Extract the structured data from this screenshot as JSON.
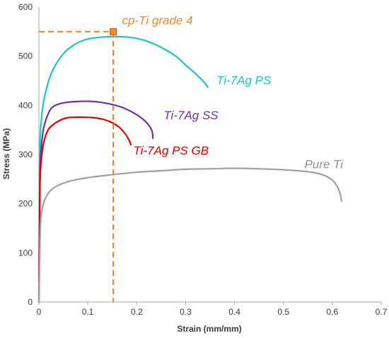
{
  "chart_data": {
    "type": "line",
    "xlabel": "Strain (mm/mm)",
    "ylabel": "Stress (MPa)",
    "xlim": [
      0,
      0.7
    ],
    "ylim": [
      0,
      600
    ],
    "xticks": [
      "0",
      "0.1",
      "0.2",
      "0.3",
      "0.4",
      "0.5",
      "0.6",
      "0.7"
    ],
    "yticks": [
      "0",
      "100",
      "200",
      "300",
      "400",
      "500",
      "600"
    ],
    "grid": false,
    "legend": "none (series labeled directly on plot)",
    "series": [
      {
        "name": "Ti-7Ag PS",
        "color": "#1fc6c0",
        "points": [
          [
            0,
            0
          ],
          [
            0.002,
            300
          ],
          [
            0.005,
            370
          ],
          [
            0.01,
            410
          ],
          [
            0.02,
            450
          ],
          [
            0.03,
            475
          ],
          [
            0.05,
            505
          ],
          [
            0.075,
            525
          ],
          [
            0.1,
            535
          ],
          [
            0.13,
            539
          ],
          [
            0.16,
            540
          ],
          [
            0.19,
            538
          ],
          [
            0.22,
            531
          ],
          [
            0.25,
            518
          ],
          [
            0.28,
            500
          ],
          [
            0.3,
            482
          ],
          [
            0.32,
            465
          ],
          [
            0.335,
            450
          ],
          [
            0.342,
            442
          ],
          [
            0.345,
            437
          ]
        ]
      },
      {
        "name": "Ti-7Ag SS",
        "color": "#7030a0",
        "points": [
          [
            0,
            0
          ],
          [
            0.002,
            250
          ],
          [
            0.005,
            315
          ],
          [
            0.01,
            355
          ],
          [
            0.02,
            385
          ],
          [
            0.03,
            398
          ],
          [
            0.05,
            405
          ],
          [
            0.08,
            408
          ],
          [
            0.11,
            408
          ],
          [
            0.14,
            404
          ],
          [
            0.17,
            396
          ],
          [
            0.195,
            384
          ],
          [
            0.215,
            370
          ],
          [
            0.228,
            355
          ],
          [
            0.232,
            345
          ],
          [
            0.233,
            333
          ]
        ]
      },
      {
        "name": "Ti-7Ag PS GB",
        "color": "#e00000",
        "points": [
          [
            0,
            0
          ],
          [
            0.002,
            230
          ],
          [
            0.005,
            290
          ],
          [
            0.01,
            325
          ],
          [
            0.02,
            352
          ],
          [
            0.04,
            368
          ],
          [
            0.06,
            375
          ],
          [
            0.09,
            376
          ],
          [
            0.12,
            374
          ],
          [
            0.145,
            367
          ],
          [
            0.165,
            355
          ],
          [
            0.178,
            340
          ],
          [
            0.185,
            328
          ],
          [
            0.188,
            320
          ]
        ]
      },
      {
        "name": "Pure Ti",
        "color": "#a0a0a0",
        "points": [
          [
            0,
            0
          ],
          [
            0.003,
            150
          ],
          [
            0.007,
            190
          ],
          [
            0.015,
            215
          ],
          [
            0.03,
            232
          ],
          [
            0.06,
            245
          ],
          [
            0.1,
            253
          ],
          [
            0.15,
            259
          ],
          [
            0.2,
            264
          ],
          [
            0.25,
            267
          ],
          [
            0.3,
            270
          ],
          [
            0.35,
            271
          ],
          [
            0.4,
            272
          ],
          [
            0.45,
            271
          ],
          [
            0.5,
            269
          ],
          [
            0.55,
            265
          ],
          [
            0.58,
            259
          ],
          [
            0.6,
            248
          ],
          [
            0.61,
            235
          ],
          [
            0.616,
            220
          ],
          [
            0.619,
            205
          ]
        ]
      }
    ],
    "reference": {
      "label": "cp-Ti grade 4",
      "color": "#f08a32",
      "x": 0.152,
      "y": 550
    },
    "labels": [
      {
        "series": "cp-Ti grade 4",
        "text": "cp-Ti grade 4",
        "color": "#f08a32",
        "x": 0.17,
        "y": 565
      },
      {
        "series": "Ti-7Ag PS",
        "text": "Ti-7Ag PS",
        "color": "#1fc6c0",
        "x": 0.363,
        "y": 443
      },
      {
        "series": "Ti-7Ag SS",
        "text": "Ti-7Ag SS",
        "color": "#7030a0",
        "x": 0.255,
        "y": 372
      },
      {
        "series": "Ti-7Ag PS GB",
        "text": "Ti-7Ag PS GB",
        "color": "#e00000",
        "x": 0.193,
        "y": 300
      },
      {
        "series": "Pure Ti",
        "text": "Pure Ti",
        "color": "#909090",
        "x": 0.543,
        "y": 272
      }
    ]
  }
}
